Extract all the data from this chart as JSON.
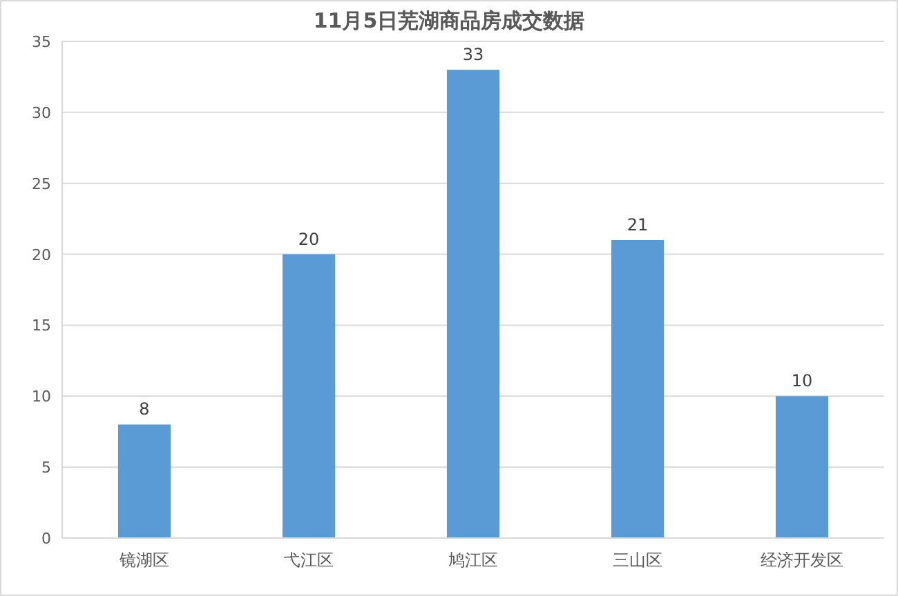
{
  "chart_data": {
    "type": "bar",
    "title": "11月5日芜湖商品房成交数据",
    "categories": [
      "镜湖区",
      "弋江区",
      "鸠江区",
      "三山区",
      "经济开发区"
    ],
    "values": [
      8,
      20,
      33,
      21,
      10
    ],
    "color": "#5b9bd5",
    "ylim": [
      0,
      35
    ],
    "yticks": [
      0,
      5,
      10,
      15,
      20,
      25,
      30,
      35
    ],
    "grid": "y",
    "data_labels": true
  }
}
